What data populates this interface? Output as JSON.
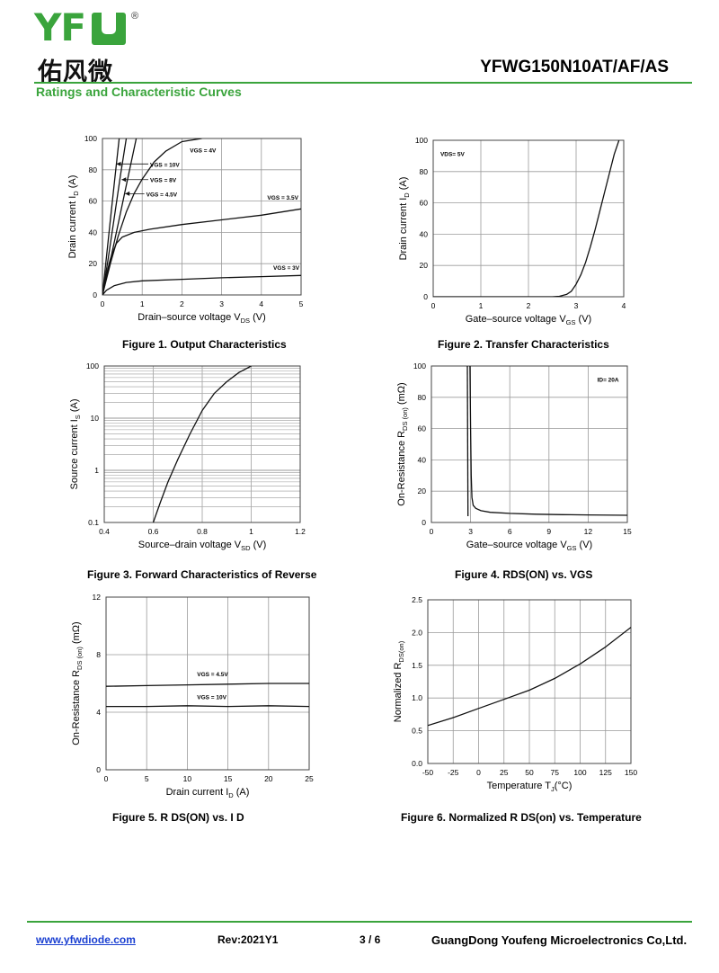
{
  "header": {
    "logo_latin": "YFW",
    "logo_chinese": "佑风微",
    "logo_reg": "®",
    "part_number": "YFWG150N10AT/AF/AS",
    "section_title": "Ratings and Characteristic Curves"
  },
  "footer": {
    "website": "www.yfwdiode.com",
    "revision": "Rev:2021Y1",
    "page": "3 / 6",
    "company": "GuangDong Youfeng Microelectronics Co,Ltd."
  },
  "colors": {
    "brand": "#3aa43c",
    "link": "#1a3fd1"
  },
  "chart_data": [
    {
      "id": "fig1",
      "type": "line",
      "caption": "Figure 1. Output Characteristics",
      "xlabel": "Drain–source voltage V",
      "xlabel_sub": "DS",
      "xlabel_unit": " (V)",
      "ylabel": "Drain current I",
      "ylabel_sub": "D",
      "ylabel_unit": " (A)",
      "xlim": [
        0,
        5
      ],
      "ylim": [
        0,
        100
      ],
      "xticks": [
        0,
        1,
        2,
        3,
        4,
        5
      ],
      "yticks": [
        0,
        20,
        40,
        60,
        80,
        100
      ],
      "grid": true,
      "series": [
        {
          "name": "VGS = 10V",
          "x": [
            0,
            0.1,
            0.2,
            0.3,
            0.42
          ],
          "y": [
            0,
            24,
            48,
            72,
            100
          ]
        },
        {
          "name": "VGS = 8V",
          "x": [
            0,
            0.15,
            0.3,
            0.45,
            0.6
          ],
          "y": [
            0,
            24,
            50,
            76,
            100
          ]
        },
        {
          "name": "VGS = 4.5V",
          "x": [
            0,
            0.2,
            0.4,
            0.6,
            0.85
          ],
          "y": [
            0,
            22,
            46,
            70,
            100
          ]
        },
        {
          "name": "VGS = 4V",
          "x": [
            0,
            0.2,
            0.4,
            0.6,
            0.8,
            1.0,
            1.3,
            1.6,
            2.0,
            2.5
          ],
          "y": [
            0,
            20,
            38,
            53,
            65,
            74,
            85,
            92,
            98,
            100
          ]
        },
        {
          "name": "VGS = 3.5V",
          "x": [
            0,
            0.1,
            0.2,
            0.35,
            0.5,
            0.8,
            1.2,
            2.0,
            3.0,
            4.0,
            5.0
          ],
          "y": [
            0,
            13,
            23,
            33,
            37,
            40,
            42,
            45,
            48,
            51,
            55
          ]
        },
        {
          "name": "VGS = 3V",
          "x": [
            0,
            0.1,
            0.3,
            0.6,
            1.0,
            2.0,
            3.0,
            4.0,
            5.0
          ],
          "y": [
            0,
            3,
            6,
            8,
            9,
            10,
            11,
            11.7,
            12.5
          ]
        }
      ],
      "annotations": [
        {
          "text": "VGS = 4V",
          "x": 2.2,
          "y": 91
        },
        {
          "text": "VGS = 10V",
          "x": 1.2,
          "y": 82,
          "arrow_to": [
            0.35,
            82
          ]
        },
        {
          "text": "VGS = 8V",
          "x": 1.2,
          "y": 72,
          "arrow_to": [
            0.48,
            72
          ]
        },
        {
          "text": "VGS = 4.5V",
          "x": 1.1,
          "y": 63,
          "arrow_to": [
            0.57,
            63
          ]
        },
        {
          "text": "VGS = 3.5V",
          "x": 4.15,
          "y": 61
        },
        {
          "text": "VGS = 3V",
          "x": 4.3,
          "y": 16
        }
      ]
    },
    {
      "id": "fig2",
      "type": "line",
      "caption": "Figure 2. Transfer Characteristics",
      "xlabel": "Gate–source voltage V",
      "xlabel_sub": "GS",
      "xlabel_unit": " (V)",
      "ylabel": "Drain current I",
      "ylabel_sub": "D",
      "ylabel_unit": " (A)",
      "xlim": [
        0,
        4
      ],
      "ylim": [
        0,
        100
      ],
      "xticks": [
        0,
        1,
        2,
        3,
        4
      ],
      "yticks": [
        0,
        20,
        40,
        60,
        80,
        100
      ],
      "grid": true,
      "series": [
        {
          "name": "VDS= 5V",
          "x": [
            0,
            2.5,
            2.65,
            2.8,
            2.9,
            3.0,
            3.1,
            3.2,
            3.3,
            3.4,
            3.5,
            3.6,
            3.7,
            3.8,
            3.9
          ],
          "y": [
            0,
            0,
            0.3,
            1.5,
            3.5,
            8,
            14,
            22,
            32,
            43,
            55,
            67,
            79,
            91,
            100
          ]
        }
      ],
      "annotations": [
        {
          "text": "VDS= 5V",
          "x": 0.15,
          "y": 90
        }
      ]
    },
    {
      "id": "fig3",
      "type": "line",
      "caption": "Figure 3. Forward Characteristics of Reverse",
      "xlabel": "Source–drain voltage V",
      "xlabel_sub": "SD",
      "xlabel_unit": " (V)",
      "ylabel": "Source current I",
      "ylabel_sub": "S",
      "ylabel_unit": " (A)",
      "xlim": [
        0.4,
        1.2
      ],
      "ylim": [
        0.1,
        100
      ],
      "yscale": "log",
      "xticks": [
        0.4,
        0.6,
        0.8,
        1.0,
        1.2
      ],
      "yticks": [
        0.1,
        1,
        10,
        100
      ],
      "grid": true,
      "series": [
        {
          "name": "",
          "x": [
            0.6,
            0.63,
            0.66,
            0.7,
            0.75,
            0.8,
            0.85,
            0.9,
            0.95,
            1.0
          ],
          "y": [
            0.1,
            0.25,
            0.6,
            1.6,
            5,
            14,
            30,
            50,
            75,
            100
          ]
        }
      ],
      "annotations": []
    },
    {
      "id": "fig4",
      "type": "line",
      "caption": "Figure 4. RDS(ON) vs. VGS",
      "xlabel": "Gate–source voltage V",
      "xlabel_sub": "GS",
      "xlabel_unit": " (V)",
      "ylabel": "On-Resistance R",
      "ylabel_sub": "DS (on)",
      "ylabel_unit": " (mΩ)",
      "xlim": [
        0,
        15
      ],
      "ylim": [
        0,
        100
      ],
      "xticks": [
        0,
        3,
        6,
        9,
        12,
        15
      ],
      "yticks": [
        0,
        20,
        40,
        60,
        80,
        100
      ],
      "grid": true,
      "series": [
        {
          "name": "ID= 20A",
          "x": [
            2.95,
            3.0,
            3.05,
            3.1,
            3.2,
            3.4,
            3.8,
            4.5,
            6,
            8,
            10,
            12,
            15
          ],
          "y": [
            100,
            60,
            30,
            16,
            11,
            9,
            7.5,
            6.5,
            5.8,
            5.3,
            5.0,
            4.8,
            4.6
          ]
        },
        {
          "name": "",
          "x": [
            2.75,
            2.8
          ],
          "y": [
            100,
            4
          ]
        }
      ],
      "annotations": [
        {
          "text": "ID= 20A",
          "x": 12.7,
          "y": 90
        }
      ]
    },
    {
      "id": "fig5",
      "type": "line",
      "caption": "Figure 5. R DS(ON) vs. I D",
      "xlabel": "Drain current I",
      "xlabel_sub": "D",
      "xlabel_unit": " (A)",
      "ylabel": "On-Resistance R",
      "ylabel_sub": "DS (on)",
      "ylabel_unit": " (mΩ)",
      "xlim": [
        0,
        25
      ],
      "ylim": [
        0,
        12
      ],
      "xticks": [
        0,
        5,
        10,
        15,
        20,
        25
      ],
      "yticks": [
        0,
        4,
        8,
        12
      ],
      "grid": true,
      "series": [
        {
          "name": "VGS = 4.5V",
          "x": [
            0,
            5,
            10,
            15,
            20,
            25
          ],
          "y": [
            5.8,
            5.85,
            5.9,
            5.95,
            6.0,
            6.0
          ]
        },
        {
          "name": "VGS = 10V",
          "x": [
            0,
            5,
            10,
            15,
            20,
            25
          ],
          "y": [
            4.4,
            4.4,
            4.45,
            4.4,
            4.45,
            4.4
          ]
        }
      ],
      "annotations": [
        {
          "text": "VGS = 4.5V",
          "x": 11.2,
          "y": 6.5
        },
        {
          "text": "VGS = 10V",
          "x": 11.2,
          "y": 4.9
        }
      ]
    },
    {
      "id": "fig6",
      "type": "line",
      "caption": "Figure 6. Normalized R DS(on) vs. Temperature",
      "xlabel": "Temperature T",
      "xlabel_sub": "J",
      "xlabel_unit": "(°C)",
      "ylabel": "Normalized R",
      "ylabel_sub": "DS(on)",
      "ylabel_unit": "",
      "xlim": [
        -50,
        150
      ],
      "ylim": [
        0,
        2.5
      ],
      "xticks": [
        -50,
        -25,
        0,
        25,
        50,
        75,
        100,
        125,
        150
      ],
      "yticks": [
        0.0,
        0.5,
        1.0,
        1.5,
        2.0,
        2.5
      ],
      "grid": true,
      "series": [
        {
          "name": "",
          "x": [
            -50,
            -25,
            0,
            25,
            50,
            75,
            100,
            125,
            150
          ],
          "y": [
            0.58,
            0.7,
            0.84,
            0.98,
            1.12,
            1.3,
            1.52,
            1.78,
            2.08
          ]
        }
      ],
      "annotations": []
    }
  ]
}
